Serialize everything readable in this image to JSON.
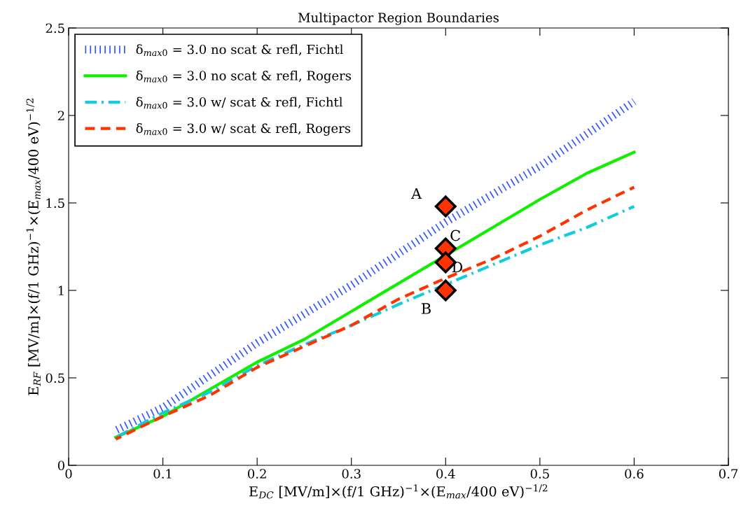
{
  "chart_data": {
    "type": "line",
    "title": "Multipactor Region Boundaries",
    "xlabel": "E$_{DC}$ [MV/m]×(f/1 GHz)$^{−1}$×(E$_{max}$/400 eV)$^{−1/2}$",
    "ylabel": "E$_{RF}$ [MV/m]×(f/1 GHz)$^{−1}$×(E$_{max}$/400 eV)$^{−1/2}$",
    "xlim": [
      0,
      0.7
    ],
    "xticks": [
      0,
      0.1,
      0.2,
      0.3,
      0.4,
      0.5,
      0.6,
      0.7
    ],
    "ylim": [
      0,
      2.5
    ],
    "yticks": [
      0,
      0.5,
      1,
      1.5,
      2,
      2.5
    ],
    "grid": false,
    "legend": "top left",
    "series": [
      {
        "name": "δ$_{max0}$ = 3.0 no scat & refl, Fichtl",
        "color": "#3355ff",
        "line_style": "dotted",
        "x": [
          0.05,
          0.1,
          0.2,
          0.3,
          0.4,
          0.5,
          0.6
        ],
        "values": [
          0.2,
          0.33,
          0.7,
          1.03,
          1.39,
          1.71,
          2.08
        ]
      },
      {
        "name": "δ$_{max0}$ = 3.0 no scat & refl, Rogers",
        "color": "#11ee00",
        "line_style": "solid",
        "x": [
          0.05,
          0.1,
          0.2,
          0.25,
          0.3,
          0.5,
          0.55,
          0.6
        ],
        "values": [
          0.16,
          0.28,
          0.59,
          0.72,
          0.88,
          1.52,
          1.67,
          1.79
        ]
      },
      {
        "name": "δ$_{max0}$ = 3.0 w/ scat & refl, Fichtl",
        "color": "#11ccdd",
        "line_style": "dashdot",
        "x": [
          0.05,
          0.1,
          0.15,
          0.2,
          0.25,
          0.3,
          0.35,
          0.5,
          0.55,
          0.6
        ],
        "values": [
          0.16,
          0.3,
          0.42,
          0.57,
          0.69,
          0.8,
          0.92,
          1.26,
          1.36,
          1.48
        ]
      },
      {
        "name": "δ$_{max0}$ = 3.0 w/ scat & refl, Rogers",
        "color": "#ff3300",
        "line_style": "dashed",
        "x": [
          0.05,
          0.1,
          0.15,
          0.2,
          0.25,
          0.3,
          0.35,
          0.4,
          0.45,
          0.5,
          0.55,
          0.6
        ],
        "values": [
          0.15,
          0.28,
          0.4,
          0.56,
          0.68,
          0.8,
          0.95,
          1.07,
          1.18,
          1.31,
          1.46,
          1.59
        ]
      },
      {
        "type": "scatter",
        "marker": "diamond",
        "color": "#ff3300",
        "x": [
          0.4,
          0.4,
          0.4,
          0.4
        ],
        "values": [
          1.48,
          1.24,
          1.16,
          1.0
        ]
      }
    ],
    "annotations": [
      "A",
      "C",
      "D",
      "B"
    ]
  }
}
